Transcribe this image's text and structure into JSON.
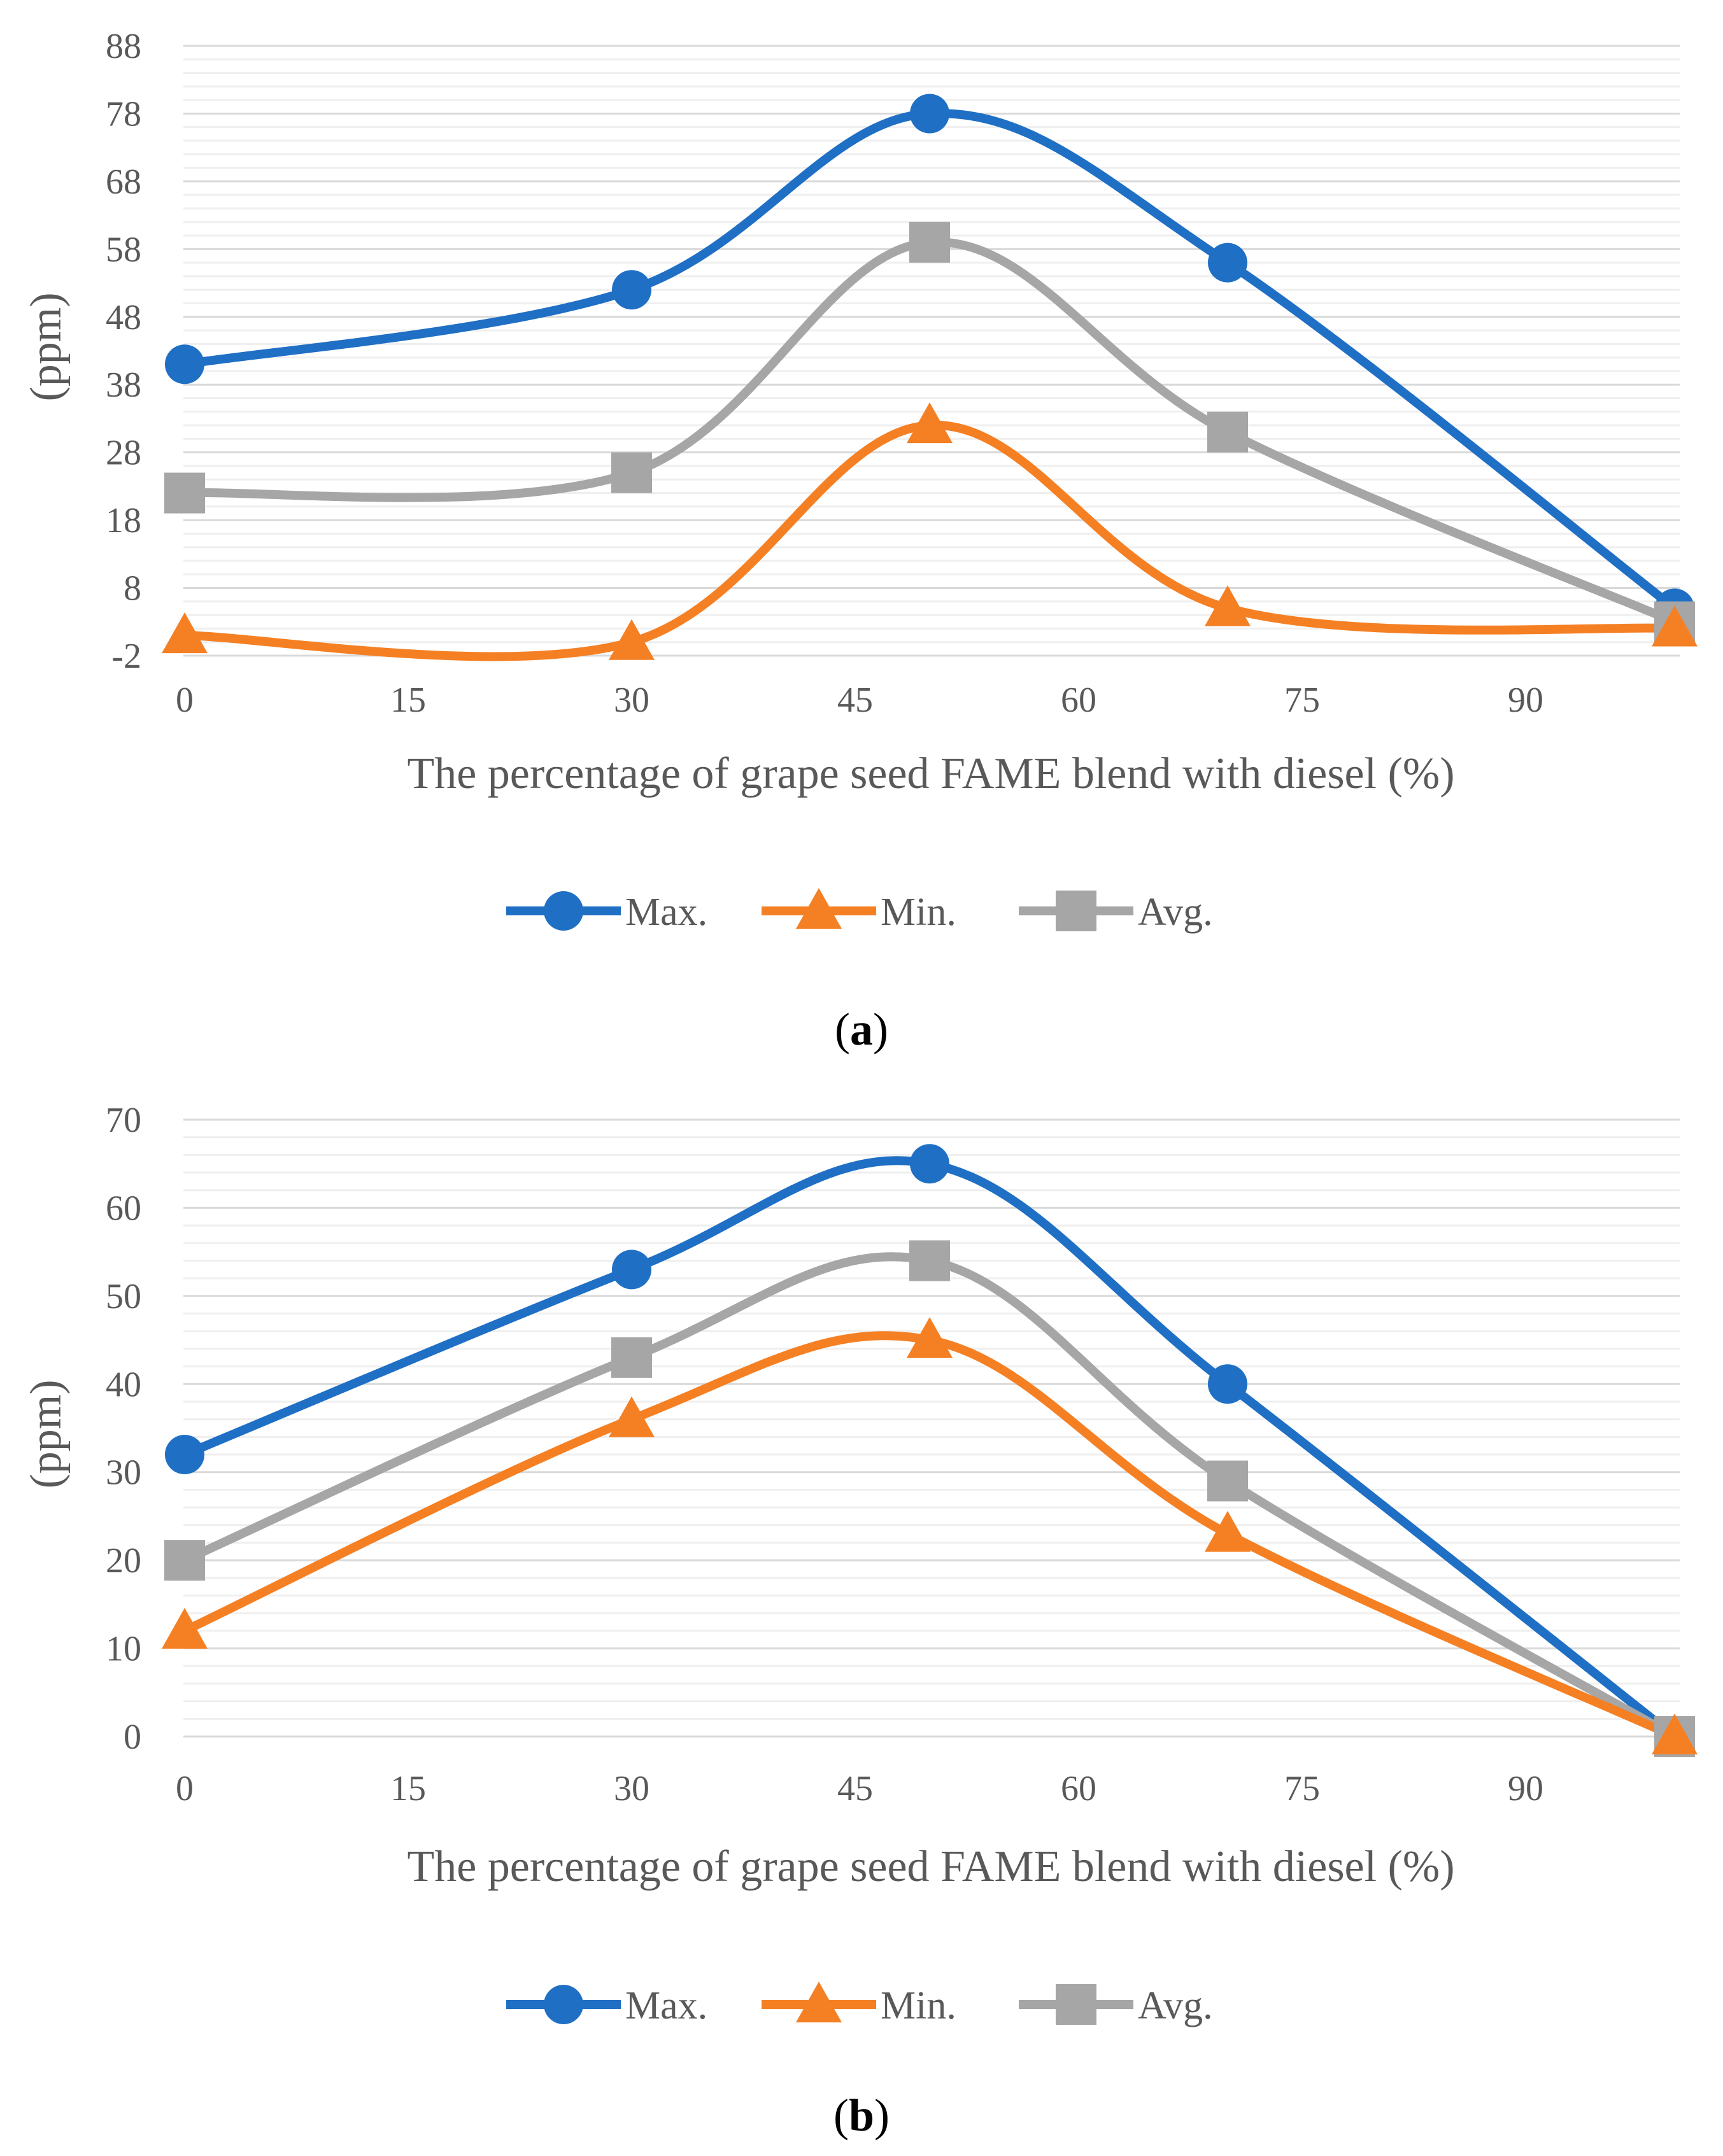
{
  "colors": {
    "max": "#1f6fc5",
    "min": "#f58024",
    "avg": "#a6a6a6",
    "grid_major": "#d9d9d9",
    "grid_minor": "#efefef",
    "text": "#595959"
  },
  "legend": {
    "max": "Max.",
    "min": "Min.",
    "avg": "Avg."
  },
  "chart_data": [
    {
      "type": "line",
      "caption_open": "(",
      "caption_letter": "a",
      "caption_close": ")",
      "xlabel": "The percentage of grape seed FAME blend with diesel (%)",
      "ylabel": "(ppm)",
      "xlim": [
        0,
        100
      ],
      "ylim": [
        -2,
        88
      ],
      "xticks": [
        0,
        15,
        30,
        45,
        60,
        75,
        90
      ],
      "yticks": [
        -2,
        8,
        18,
        28,
        38,
        48,
        58,
        68,
        78,
        88
      ],
      "minor_step": 2,
      "x": [
        0,
        30,
        50,
        70,
        100
      ],
      "series": [
        {
          "name": "Max.",
          "key": "max",
          "marker": "circle",
          "values": [
            41,
            52,
            78,
            56,
            5
          ]
        },
        {
          "name": "Min.",
          "key": "min",
          "marker": "triangle",
          "values": [
            1,
            0,
            32,
            5,
            2
          ]
        },
        {
          "name": "Avg.",
          "key": "avg",
          "marker": "square",
          "values": [
            22,
            25,
            59,
            31,
            3
          ]
        }
      ]
    },
    {
      "type": "line",
      "caption_open": "(",
      "caption_letter": "b",
      "caption_close": ")",
      "xlabel": "The percentage of grape seed FAME blend with diesel (%)",
      "ylabel": "(ppm)",
      "xlim": [
        0,
        100
      ],
      "ylim": [
        0,
        70
      ],
      "xticks": [
        0,
        15,
        30,
        45,
        60,
        75,
        90
      ],
      "yticks": [
        0,
        10,
        20,
        30,
        40,
        50,
        60,
        70
      ],
      "minor_step": 2,
      "x": [
        0,
        30,
        50,
        70,
        100
      ],
      "series": [
        {
          "name": "Max.",
          "key": "max",
          "marker": "circle",
          "values": [
            32,
            53,
            65,
            40,
            0
          ]
        },
        {
          "name": "Min.",
          "key": "min",
          "marker": "triangle",
          "values": [
            12,
            36,
            45,
            23,
            0
          ]
        },
        {
          "name": "Avg.",
          "key": "avg",
          "marker": "square",
          "values": [
            20,
            43,
            54,
            29,
            0
          ]
        }
      ]
    }
  ]
}
